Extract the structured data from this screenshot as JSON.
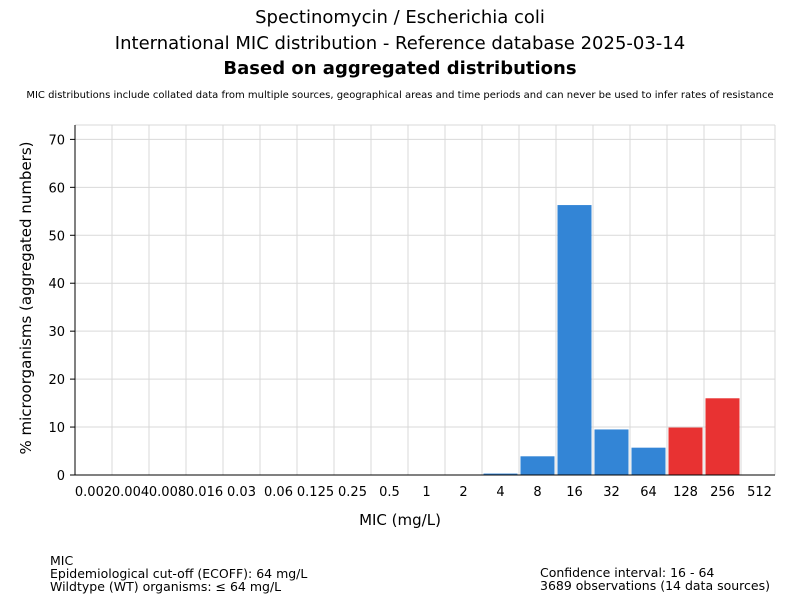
{
  "header": {
    "title_line1": "Spectinomycin / Escherichia coli",
    "title_line2": "International MIC distribution - Reference database 2025-03-14",
    "title_line3": "Based on aggregated distributions",
    "note": "MIC distributions include collated data from multiple sources, geographical areas and time periods and can never be used to infer rates of resistance"
  },
  "chart_data": {
    "type": "bar",
    "categories": [
      "0.002",
      "0.004",
      "0.008",
      "0.016",
      "0.03",
      "0.06",
      "0.125",
      "0.25",
      "0.5",
      "1",
      "2",
      "4",
      "8",
      "16",
      "32",
      "64",
      "128",
      "256",
      "512"
    ],
    "values": [
      0,
      0,
      0,
      0,
      0,
      0,
      0,
      0,
      0,
      0,
      0,
      0.3,
      3.9,
      56.3,
      9.5,
      5.7,
      9.9,
      16.0,
      0
    ],
    "bar_colors": [
      "#3385d6",
      "#3385d6",
      "#3385d6",
      "#3385d6",
      "#3385d6",
      "#3385d6",
      "#3385d6",
      "#3385d6",
      "#3385d6",
      "#3385d6",
      "#3385d6",
      "#3385d6",
      "#3385d6",
      "#3385d6",
      "#3385d6",
      "#3385d6",
      "#e83232",
      "#e83232",
      "#e83232"
    ],
    "xlabel": "MIC (mg/L)",
    "ylabel": "% microorganisms (aggregated numbers)",
    "ylim": [
      0,
      73
    ],
    "yticks": [
      0,
      10,
      20,
      30,
      40,
      50,
      60,
      70
    ],
    "grid": true,
    "colors": {
      "wildtype": "#3385d6",
      "non_wildtype": "#e83232",
      "grid": "#d9d9d9"
    }
  },
  "footer": {
    "left_line1": "MIC",
    "left_line2": "Epidemiological cut-off (ECOFF): 64 mg/L",
    "left_line3": "Wildtype (WT) organisms: ≤ 64 mg/L",
    "right_line1": "Confidence interval: 16 - 64",
    "right_line2": "3689 observations (14 data sources)"
  }
}
